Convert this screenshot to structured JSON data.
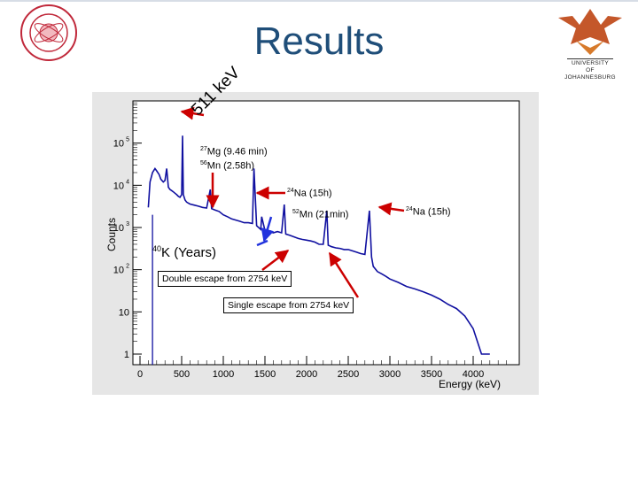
{
  "slide": {
    "title": "Results"
  },
  "logos": {
    "right_text_lines": [
      "UNIVERSITY",
      "OF",
      "JOHANNESBURG"
    ]
  },
  "colors": {
    "title": "#1f4e79",
    "spectrum": "#1010a0",
    "arrow_red": "#cc0000",
    "arrow_blue": "#2233dd"
  },
  "annotations": {
    "kev511_label": "511 keV",
    "mg27_iso": "27",
    "mg27_text": "Mg (9.46 min)",
    "mn56_iso": "56",
    "mn56_text": "Mn (2.58h)",
    "na24_iso": "24",
    "na24_text": "Na (15h)",
    "mn52_iso": "52",
    "mn52_text": "Mn (21min)",
    "k40_iso": "40",
    "k40_text": "K (Years)",
    "double_escape": "Double escape from 2754 keV",
    "single_escape": "Single escape from 2754 keV",
    "na24_right_iso": "24",
    "na24_right_text": "Na (15h)"
  },
  "chart_data": {
    "type": "line",
    "xlabel": "Energy (keV)",
    "ylabel": "Counts",
    "xlim": [
      0,
      4200
    ],
    "ylim": [
      1,
      1000000
    ],
    "yscale": "log",
    "x_ticks": [
      0,
      500,
      1000,
      1500,
      2000,
      2500,
      3000,
      3500,
      4000
    ],
    "y_ticks": [
      {
        "value": 1,
        "base": "1",
        "exp": ""
      },
      {
        "value": 10,
        "base": "10",
        "exp": ""
      },
      {
        "value": 100,
        "base": "10",
        "exp": "2"
      },
      {
        "value": 1000,
        "base": "10",
        "exp": "3"
      },
      {
        "value": 10000,
        "base": "10",
        "exp": "4"
      },
      {
        "value": 100000,
        "base": "10",
        "exp": "5"
      }
    ],
    "spectrum": {
      "x": [
        100,
        120,
        150,
        180,
        200,
        230,
        250,
        280,
        300,
        320,
        340,
        360,
        380,
        400,
        420,
        440,
        460,
        480,
        500,
        511,
        520,
        540,
        560,
        580,
        600,
        650,
        700,
        750,
        800,
        844,
        860,
        900,
        950,
        1000,
        1050,
        1100,
        1150,
        1200,
        1250,
        1300,
        1350,
        1368,
        1400,
        1450,
        1461,
        1500,
        1550,
        1600,
        1650,
        1700,
        1732,
        1750,
        1800,
        1850,
        1900,
        1950,
        2000,
        2050,
        2100,
        2150,
        2200,
        2243,
        2260,
        2300,
        2350,
        2400,
        2450,
        2500,
        2550,
        2600,
        2650,
        2700,
        2754,
        2780,
        2800,
        2850,
        2900,
        2950,
        3000,
        3100,
        3200,
        3300,
        3400,
        3500,
        3600,
        3700,
        3800,
        3900,
        4000,
        4100,
        4200
      ],
      "y": [
        3000,
        12000,
        20000,
        25000,
        22000,
        18000,
        14000,
        12000,
        13000,
        25000,
        9000,
        8000,
        7500,
        7000,
        6500,
        6000,
        5500,
        5200,
        6000,
        150000,
        6000,
        4500,
        4000,
        3800,
        3600,
        3400,
        3200,
        3000,
        2900,
        8000,
        2800,
        2600,
        2400,
        2000,
        1800,
        1600,
        1500,
        1400,
        1300,
        1300,
        1250,
        25000,
        1100,
        900,
        1800,
        850,
        800,
        750,
        800,
        750,
        3500,
        700,
        650,
        600,
        550,
        520,
        500,
        480,
        450,
        400,
        400,
        2500,
        380,
        350,
        330,
        320,
        300,
        300,
        280,
        260,
        240,
        230,
        2500,
        200,
        120,
        90,
        80,
        70,
        60,
        50,
        40,
        35,
        30,
        25,
        20,
        15,
        12,
        8,
        4,
        1,
        1
      ]
    },
    "k40_line": {
      "x": 150,
      "y_top": 2000
    }
  }
}
